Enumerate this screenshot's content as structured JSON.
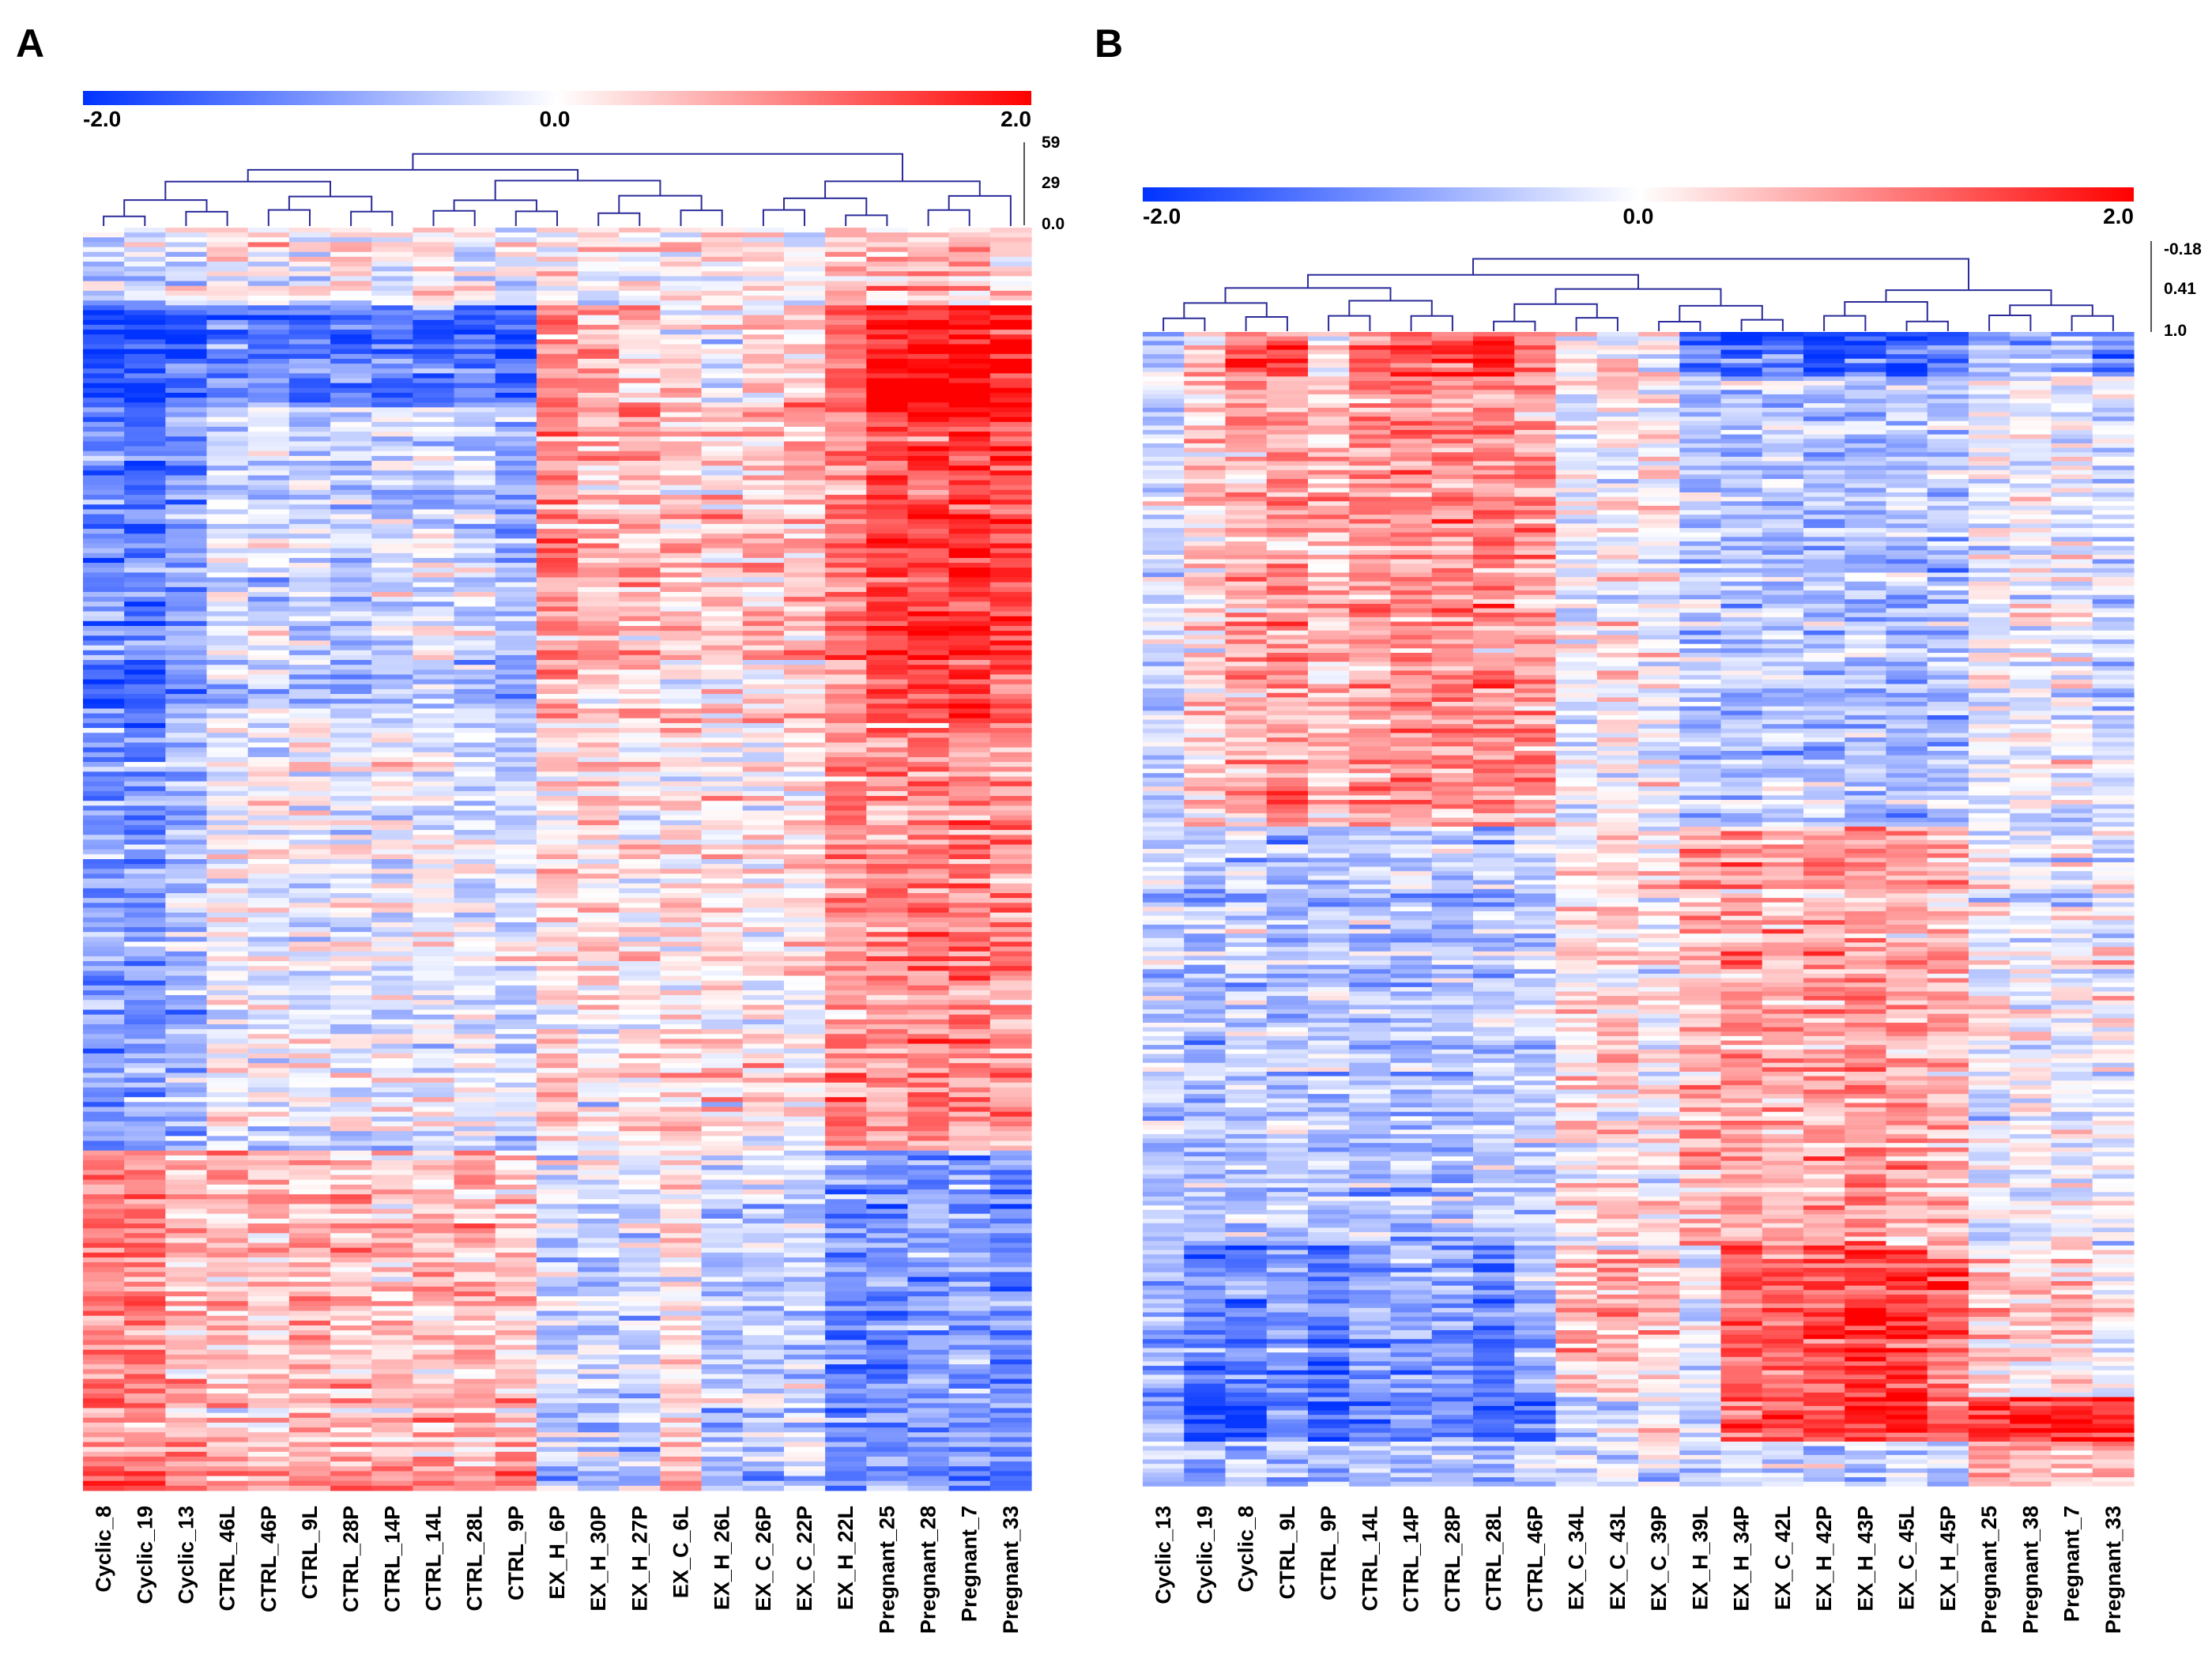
{
  "colors": {
    "low": "#0033ff",
    "mid": "#ffffff",
    "high": "#ff0000",
    "dendrogram": "#2b2b9a"
  },
  "chart_data": [
    {
      "panel": "A",
      "type": "heatmap",
      "colorbar": {
        "min": -2.0,
        "max": 2.0,
        "min_label": "-2.0",
        "mid_label": "0.0",
        "max_label": "2.0"
      },
      "dendrogram_scale": {
        "labels": [
          "59",
          "29",
          "0.0"
        ],
        "values": [
          59,
          29,
          0
        ]
      },
      "columns": [
        "Cyclic_8",
        "Cyclic_19",
        "Cyclic_13",
        "CTRL_46L",
        "CTRL_46P",
        "CTRL_9L",
        "CTRL_28P",
        "CTRL_14P",
        "CTRL_14L",
        "CTRL_28L",
        "CTRL_9P",
        "EX_H_6P",
        "EX_H_30P",
        "EX_H_27P",
        "EX_C_6L",
        "EX_H_26L",
        "EX_C_26P",
        "EX_C_22P",
        "EX_H_22L",
        "Pregnant_25",
        "Pregnant_28",
        "Pregnant_7",
        "Pregnant_33"
      ],
      "row_blocks": [
        {
          "fraction": 0.06,
          "values": [
            -0.4,
            -0.3,
            -0.3,
            0.1,
            0.1,
            -0.1,
            0.1,
            0.0,
            0.0,
            -0.1,
            -0.2,
            0.1,
            0.1,
            0.0,
            0.0,
            0.1,
            0.0,
            0.0,
            0.4,
            0.4,
            0.4,
            0.4,
            0.3
          ]
        },
        {
          "fraction": 0.08,
          "values": [
            -1.8,
            -1.8,
            -1.6,
            -1.3,
            -1.2,
            -1.4,
            -1.3,
            -1.3,
            -1.3,
            -1.4,
            -1.5,
            0.9,
            0.6,
            0.4,
            0.3,
            -0.2,
            0.2,
            0.5,
            1.2,
            1.9,
            1.9,
            1.9,
            1.9
          ]
        },
        {
          "fraction": 0.25,
          "values": [
            -1.2,
            -1.3,
            -1.0,
            -0.4,
            -0.3,
            -0.5,
            -0.5,
            -0.4,
            -0.4,
            -0.5,
            -0.7,
            0.8,
            0.6,
            0.5,
            0.4,
            0.3,
            0.4,
            0.5,
            1.0,
            1.5,
            1.4,
            1.6,
            1.4
          ]
        },
        {
          "fraction": 0.34,
          "values": [
            -0.9,
            -0.9,
            -0.7,
            0.0,
            -0.1,
            -0.1,
            -0.1,
            -0.1,
            -0.1,
            -0.2,
            -0.3,
            0.3,
            0.2,
            0.2,
            0.2,
            0.2,
            0.1,
            0.2,
            0.9,
            0.9,
            1.0,
            0.9,
            0.9
          ]
        },
        {
          "fraction": 0.25,
          "values": [
            0.9,
            1.0,
            0.6,
            0.5,
            0.5,
            0.6,
            0.6,
            0.5,
            0.5,
            0.5,
            0.5,
            -0.3,
            -0.4,
            -0.3,
            0.2,
            -0.5,
            -0.4,
            -0.4,
            -1.0,
            -1.0,
            -1.0,
            -0.9,
            -1.0
          ]
        },
        {
          "fraction": 0.02,
          "values": [
            1.2,
            1.3,
            0.9,
            0.8,
            0.8,
            0.9,
            0.9,
            0.8,
            0.8,
            0.8,
            0.8,
            -0.6,
            -0.7,
            -0.6,
            0.4,
            -0.8,
            -0.9,
            -0.9,
            -1.4,
            -1.3,
            -1.3,
            -1.3,
            -1.4
          ]
        }
      ]
    },
    {
      "panel": "B",
      "type": "heatmap",
      "colorbar": {
        "min": -2.0,
        "max": 2.0,
        "min_label": "-2.0",
        "mid_label": "0.0",
        "max_label": "2.0"
      },
      "dendrogram_scale": {
        "labels": [
          "-0.18",
          "0.41",
          "1.0"
        ],
        "values": [
          -0.18,
          0.41,
          1.0
        ]
      },
      "columns": [
        "Cyclic_13",
        "Cyclic_19",
        "Cyclic_8",
        "CTRL_9L",
        "CTRL_9P",
        "CTRL_14L",
        "CTRL_14P",
        "CTRL_28P",
        "CTRL_28L",
        "CTRL_46P",
        "EX_C_34L",
        "EX_C_43L",
        "EX_C_39P",
        "EX_H_39L",
        "EX_H_34P",
        "EX_C_42L",
        "EX_H_42P",
        "EX_H_43P",
        "EX_C_45L",
        "EX_H_45P",
        "Pregnant_25",
        "Pregnant_38",
        "Pregnant_7",
        "Pregnant_33"
      ],
      "row_blocks": [
        {
          "fraction": 0.04,
          "values": [
            -0.6,
            0.4,
            1.5,
            1.4,
            0.3,
            1.2,
            1.4,
            1.3,
            1.6,
            1.1,
            0.1,
            0.1,
            0.0,
            -1.3,
            -1.6,
            -1.2,
            -1.8,
            -1.4,
            -1.5,
            -1.3,
            -0.6,
            -0.6,
            -0.7,
            -1.2
          ]
        },
        {
          "fraction": 0.39,
          "values": [
            -0.3,
            0.4,
            0.6,
            0.8,
            0.5,
            0.8,
            0.9,
            0.9,
            0.9,
            0.8,
            -0.1,
            0.1,
            0.0,
            -0.5,
            -0.6,
            -0.5,
            -0.6,
            -0.6,
            -0.7,
            -0.6,
            -0.1,
            -0.1,
            -0.1,
            -0.3
          ]
        },
        {
          "fraction": 0.36,
          "values": [
            -0.4,
            -0.6,
            -0.5,
            -0.6,
            -0.5,
            -0.6,
            -0.6,
            -0.6,
            -0.5,
            -0.4,
            0.2,
            0.3,
            0.1,
            0.6,
            0.7,
            0.6,
            0.7,
            0.8,
            0.7,
            0.6,
            -0.1,
            -0.1,
            -0.1,
            -0.1
          ]
        },
        {
          "fraction": 0.13,
          "values": [
            -0.8,
            -1.3,
            -1.2,
            -1.0,
            -1.4,
            -0.9,
            -0.9,
            -1.0,
            -1.2,
            -0.7,
            0.6,
            0.5,
            0.4,
            -0.2,
            1.3,
            1.2,
            1.3,
            1.6,
            1.5,
            1.2,
            0.3,
            0.3,
            0.4,
            -0.1
          ]
        },
        {
          "fraction": 0.04,
          "values": [
            -1.0,
            -1.8,
            -1.8,
            -1.2,
            -1.6,
            -1.3,
            -1.2,
            -1.2,
            -1.7,
            -1.3,
            -0.5,
            -0.4,
            -0.2,
            -0.4,
            1.2,
            1.3,
            1.5,
            1.6,
            1.6,
            1.1,
            1.7,
            1.8,
            1.7,
            1.6
          ]
        },
        {
          "fraction": 0.04,
          "values": [
            -0.5,
            -0.9,
            -0.7,
            -0.6,
            -0.8,
            -0.5,
            -0.5,
            -0.5,
            -0.7,
            -0.3,
            -0.4,
            -0.3,
            -0.3,
            -0.4,
            -0.4,
            -0.4,
            -0.5,
            -0.4,
            -0.4,
            -0.3,
            0.6,
            0.6,
            0.5,
            0.5
          ]
        }
      ]
    }
  ]
}
